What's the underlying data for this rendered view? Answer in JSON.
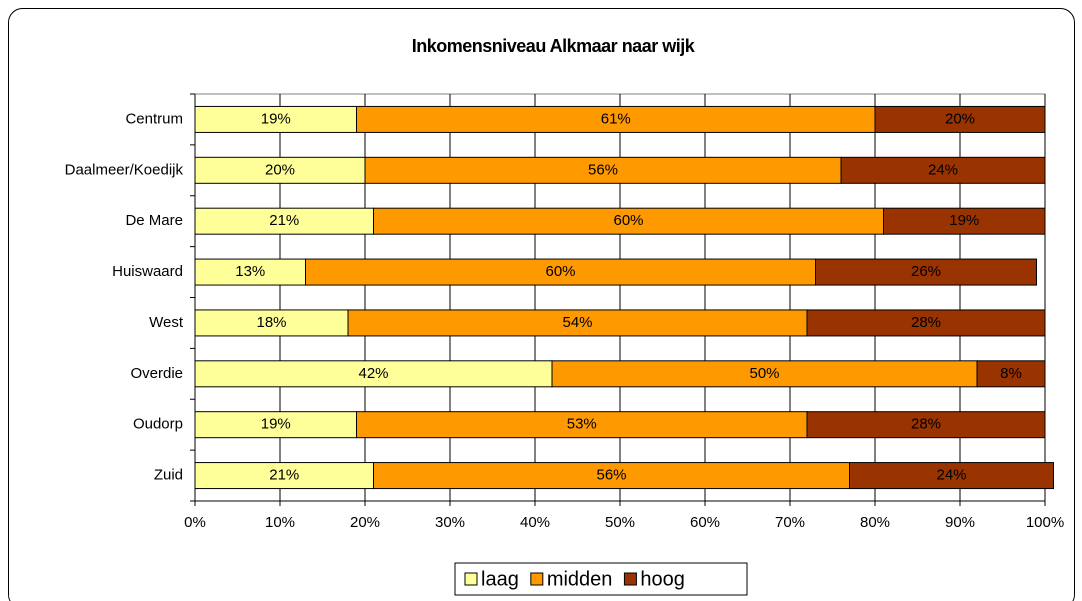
{
  "chart_data": {
    "type": "stacked_barh",
    "title": "Inkomensniveau Alkmaar naar wijk",
    "categories": [
      "Centrum",
      "Daalmeer/Koedijk",
      "De Mare",
      "Huiswaard",
      "West",
      "Overdie",
      "Oudorp",
      "Zuid"
    ],
    "series": [
      {
        "name": "laag",
        "color": "#ffff99",
        "values": [
          19,
          20,
          21,
          13,
          18,
          42,
          19,
          21
        ],
        "value_labels": [
          "19%",
          "20%",
          "21%",
          "13%",
          "18%",
          "42%",
          "19%",
          "21%"
        ]
      },
      {
        "name": "midden",
        "color": "#ff9900",
        "values": [
          61,
          56,
          60,
          60,
          54,
          50,
          53,
          56
        ],
        "value_labels": [
          "61%",
          "56%",
          "60%",
          "60%",
          "54%",
          "50%",
          "53%",
          "56%"
        ]
      },
      {
        "name": "hoog",
        "color": "#993300",
        "values": [
          20,
          24,
          19,
          26,
          28,
          8,
          28,
          24
        ],
        "value_labels": [
          "20%",
          "24%",
          "19%",
          "26%",
          "28%",
          "8%",
          "28%",
          "24%"
        ]
      }
    ],
    "xlim": [
      0,
      100
    ],
    "xticks": [
      {
        "value": 0,
        "label": "0%"
      },
      {
        "value": 10,
        "label": "10%"
      },
      {
        "value": 20,
        "label": "20%"
      },
      {
        "value": 30,
        "label": "30%"
      },
      {
        "value": 40,
        "label": "40%"
      },
      {
        "value": 50,
        "label": "50%"
      },
      {
        "value": 60,
        "label": "60%"
      },
      {
        "value": 70,
        "label": "70%"
      },
      {
        "value": 80,
        "label": "80%"
      },
      {
        "value": 90,
        "label": "90%"
      },
      {
        "value": 100,
        "label": "100%"
      }
    ],
    "grid": true,
    "legend": "bottom"
  }
}
